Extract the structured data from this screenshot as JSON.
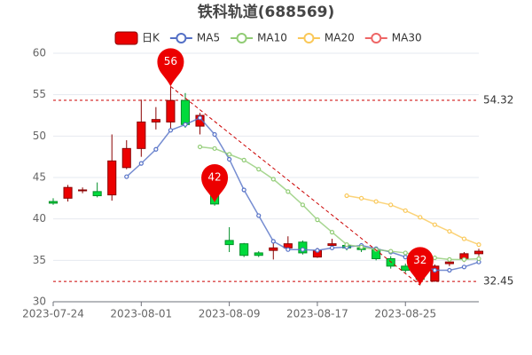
{
  "chart_data": {
    "type": "candlestick",
    "title": "铁科轨道(688569)",
    "categories": [
      "2023-07-24",
      null,
      null,
      null,
      null,
      null,
      "2023-08-01",
      null,
      null,
      null,
      null,
      null,
      "2023-08-09",
      null,
      null,
      null,
      null,
      null,
      "2023-08-17",
      null,
      null,
      null,
      null,
      null,
      "2023-08-25",
      null,
      null,
      null,
      null,
      null
    ],
    "candles": {
      "name": "日K",
      "color_up": "#ec0000",
      "border_up": "#8a0000",
      "color_down": "#00da3c",
      "border_down": "#008f28",
      "open": [
        42.1,
        42.5,
        43.4,
        43.3,
        42.9,
        46.2,
        48.5,
        51.7,
        51.7,
        54.3,
        51.2,
        44.0,
        37.4,
        37.0,
        35.9,
        36.2,
        36.5,
        37.2,
        35.4,
        36.8,
        36.8,
        36.5,
        36.3,
        35.2,
        34.3,
        34.0,
        32.5,
        34.6,
        35.2,
        35.8
      ],
      "close": [
        41.9,
        43.8,
        43.5,
        42.8,
        47.0,
        48.5,
        51.7,
        52.0,
        54.3,
        51.4,
        52.5,
        41.8,
        36.9,
        35.6,
        35.6,
        36.5,
        37.0,
        35.9,
        36.2,
        37.0,
        36.5,
        36.3,
        35.2,
        34.3,
        33.8,
        32.7,
        34.3,
        34.8,
        35.8,
        36.1
      ],
      "high": [
        42.5,
        44.1,
        43.8,
        44.4,
        50.2,
        49.5,
        54.4,
        53.5,
        56.0,
        55.2,
        52.8,
        44.3,
        39.0,
        37.1,
        36.1,
        37.1,
        37.9,
        37.4,
        36.5,
        37.6,
        37.0,
        36.8,
        36.5,
        35.5,
        34.6,
        34.3,
        34.5,
        35.0,
        36.0,
        36.4
      ],
      "low": [
        41.7,
        42.1,
        43.1,
        42.6,
        42.2,
        46.0,
        47.5,
        50.8,
        50.5,
        51.0,
        50.2,
        41.6,
        36.0,
        35.4,
        35.4,
        35.1,
        36.2,
        35.7,
        35.3,
        36.3,
        36.2,
        36.0,
        35.0,
        34.0,
        33.5,
        32.0,
        32.4,
        34.3,
        34.8,
        35.5
      ]
    },
    "series": [
      {
        "name": "MA5",
        "color": "#5470c6",
        "values": [
          null,
          null,
          null,
          null,
          null,
          45.1,
          46.7,
          48.4,
          50.7,
          51.4,
          52.2,
          50.2,
          47.2,
          43.5,
          40.4,
          37.3,
          36.3,
          36.3,
          36.2,
          36.5,
          36.6,
          36.8,
          36.4,
          36.0,
          35.4,
          34.6,
          33.8,
          33.8,
          34.2,
          34.8
        ]
      },
      {
        "name": "MA10",
        "color": "#91cc75",
        "values": [
          null,
          null,
          null,
          null,
          null,
          null,
          null,
          null,
          null,
          null,
          48.7,
          48.5,
          47.8,
          47.1,
          46.0,
          44.8,
          43.3,
          41.7,
          39.9,
          38.4,
          36.9,
          36.6,
          36.3,
          36.1,
          35.9,
          35.6,
          35.3,
          35.1,
          35.1,
          35.2
        ]
      },
      {
        "name": "MA20",
        "color": "#fac858",
        "values": [
          null,
          null,
          null,
          null,
          null,
          null,
          null,
          null,
          null,
          null,
          null,
          null,
          null,
          null,
          null,
          null,
          null,
          null,
          null,
          null,
          42.8,
          42.5,
          42.1,
          41.7,
          41.0,
          40.2,
          39.3,
          38.5,
          37.6,
          36.9
        ]
      },
      {
        "name": "MA30",
        "color": "#ee6666",
        "values": [
          null,
          null,
          null,
          null,
          null,
          null,
          null,
          null,
          null,
          null,
          null,
          null,
          null,
          null,
          null,
          null,
          null,
          null,
          null,
          null,
          null,
          null,
          null,
          null,
          null,
          null,
          null,
          null,
          null,
          null
        ]
      }
    ],
    "mark_points": [
      {
        "index": 8,
        "value": 56
      },
      {
        "index": 11,
        "value": 42
      },
      {
        "index": 25,
        "value": 32
      }
    ],
    "mark_lines": [
      54.32,
      32.45
    ],
    "ylim": [
      30,
      60
    ],
    "yticks": [
      30,
      35,
      40,
      45,
      50,
      55,
      60
    ],
    "grid": true
  }
}
